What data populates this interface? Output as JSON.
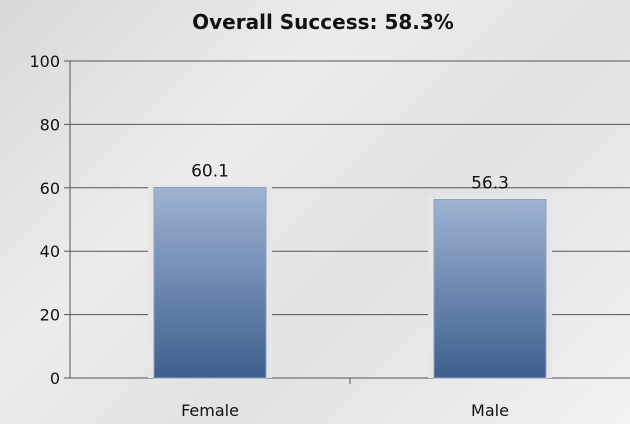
{
  "chart_data": {
    "type": "bar",
    "title": "Overall Success: 58.3%",
    "categories": [
      "Female",
      "Male"
    ],
    "values": [
      60.1,
      56.3
    ],
    "data_labels": [
      "60.1",
      "56.3"
    ],
    "ylim": [
      0,
      100
    ],
    "yticks": [
      "0",
      "20",
      "40",
      "60",
      "80",
      "100"
    ],
    "xlabel": "",
    "ylabel": "",
    "grid": true,
    "colors": {
      "bar_top": "#9fb3d3",
      "bar_bottom": "#3d5f8e",
      "grid": "#555555",
      "axis": "#555555"
    }
  }
}
